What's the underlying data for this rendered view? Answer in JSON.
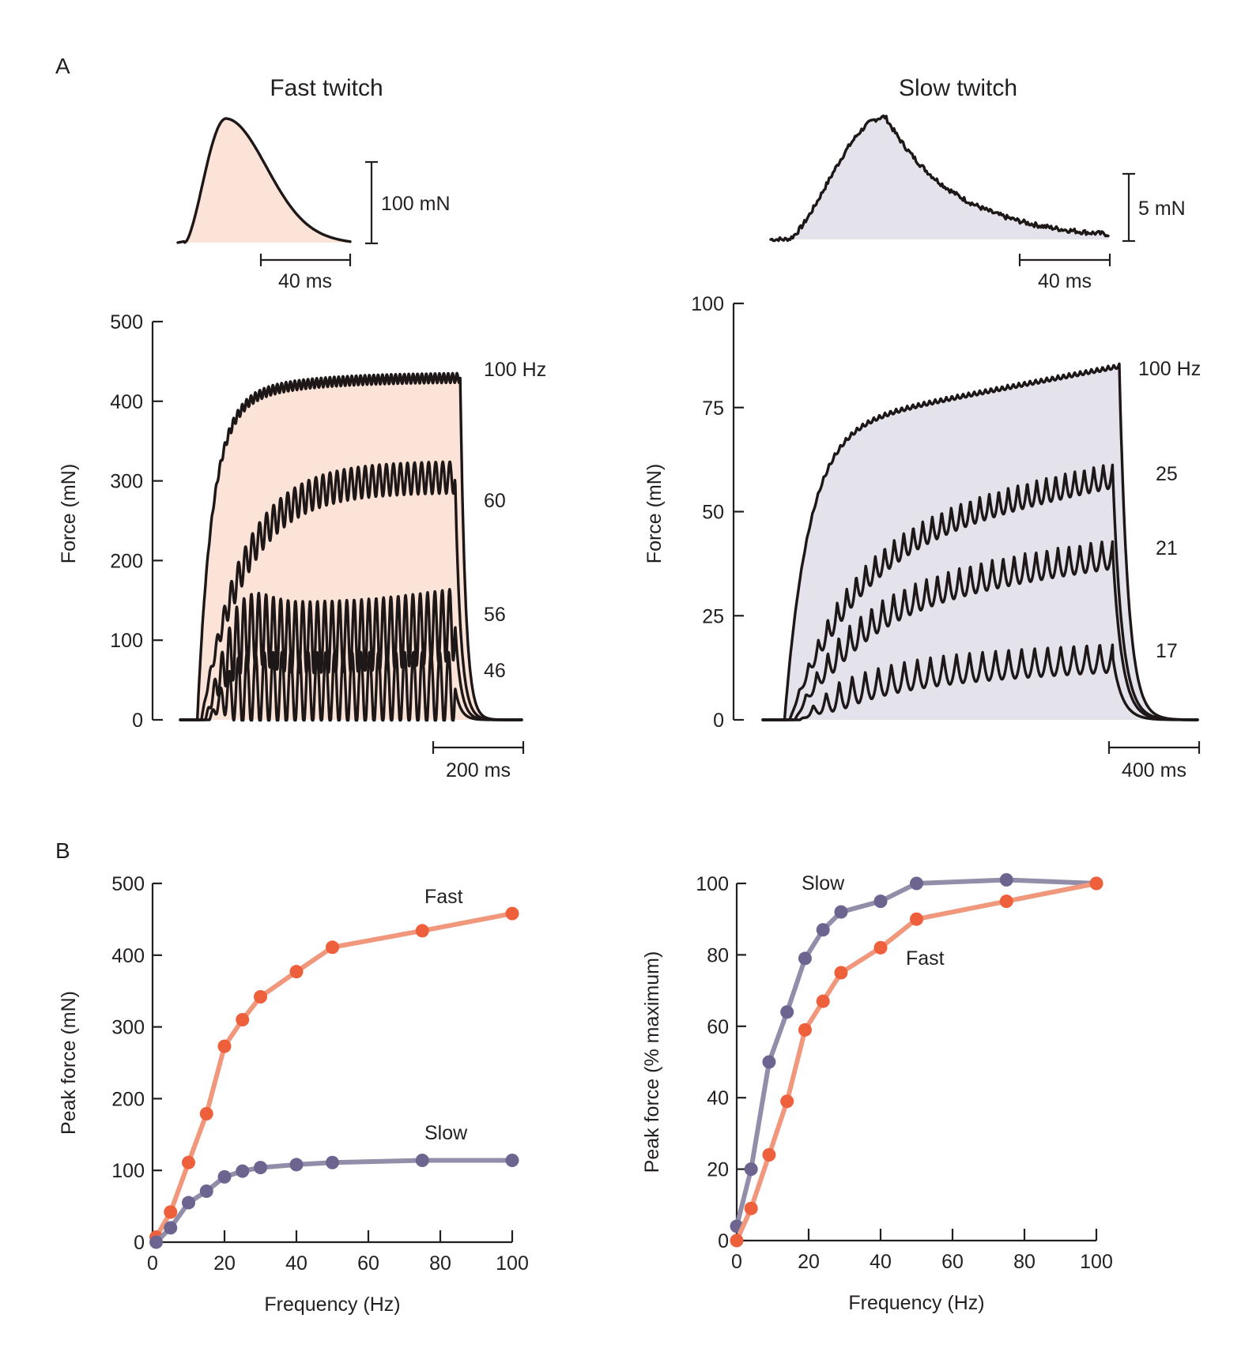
{
  "panels": {
    "A": {
      "letter": "A",
      "fast": {
        "title": "Fast twitch",
        "single_twitch": {
          "force_scale": "100 mN",
          "time_scale": "40 ms",
          "fill": "#fbe3d8"
        },
        "tetanus": {
          "ylabel": "Force (mN)",
          "yticks": [
            "0",
            "100",
            "200",
            "300",
            "400",
            "500"
          ],
          "ylim": [
            0,
            500
          ],
          "time_scale": "200 ms",
          "fill": "#fbe3d8",
          "traces": [
            {
              "label": "100 Hz",
              "plateau": 430,
              "ripple": 6,
              "cycles": 60
            },
            {
              "label": "60",
              "plateau": 305,
              "ripple": 20,
              "cycles": 36
            },
            {
              "label": "56",
              "plateau": 120,
              "ripple": 45,
              "cycles": 34
            },
            {
              "label": "46",
              "plateau": 40,
              "ripple": 45,
              "cycles": 28
            }
          ]
        }
      },
      "slow": {
        "title": "Slow twitch",
        "single_twitch": {
          "force_scale": "5 mN",
          "time_scale": "40 ms",
          "fill": "#e4e2ea"
        },
        "tetanus": {
          "ylabel": "Force (mN)",
          "yticks": [
            "0",
            "25",
            "50",
            "75",
            "100"
          ],
          "ylim": [
            0,
            100
          ],
          "time_scale": "400 ms",
          "fill": "#e4e2ea",
          "traces": [
            {
              "label": "100 Hz",
              "plateau": 85,
              "ripple": 0.5,
              "cycles": 60
            },
            {
              "label": "25",
              "plateau": 59,
              "ripple": 3,
              "cycles": 34
            },
            {
              "label": "21",
              "plateau": 40,
              "ripple": 3.5,
              "cycles": 29
            },
            {
              "label": "17",
              "plateau": 15,
              "ripple": 3.5,
              "cycles": 24
            }
          ]
        }
      }
    },
    "B": {
      "letter": "B"
    }
  },
  "chart_data": [
    {
      "type": "line",
      "title": "",
      "xlabel": "Frequency (Hz)",
      "ylabel": "Peak force (mN)",
      "xlim": [
        0,
        100
      ],
      "ylim": [
        0,
        500
      ],
      "xticks": [
        "0",
        "20",
        "40",
        "60",
        "80",
        "100"
      ],
      "yticks": [
        "0",
        "100",
        "200",
        "300",
        "400",
        "500"
      ],
      "grid": false,
      "series": [
        {
          "name": "Fast",
          "color": "#ee5f3c",
          "line_color": "#f0977c",
          "x": [
            1,
            5,
            10,
            15,
            20,
            25,
            30,
            40,
            50,
            75,
            100
          ],
          "y": [
            7,
            42,
            111,
            179,
            273,
            310,
            342,
            377,
            411,
            434,
            458
          ]
        },
        {
          "name": "Slow",
          "color": "#6d6590",
          "line_color": "#928da9",
          "x": [
            1,
            5,
            10,
            15,
            20,
            25,
            30,
            40,
            50,
            75,
            100
          ],
          "y": [
            0,
            20,
            55,
            71,
            91,
            99,
            104,
            108,
            111,
            114,
            114
          ]
        }
      ]
    },
    {
      "type": "line",
      "title": "",
      "xlabel": "Frequency (Hz)",
      "ylabel": "Peak force (% maximum)",
      "xlim": [
        0,
        100
      ],
      "ylim": [
        0,
        100
      ],
      "xticks": [
        "0",
        "20",
        "40",
        "60",
        "80",
        "100"
      ],
      "yticks": [
        "0",
        "20",
        "40",
        "60",
        "80",
        "100"
      ],
      "grid": false,
      "series": [
        {
          "name": "Slow",
          "color": "#6d6590",
          "line_color": "#928da9",
          "x": [
            0,
            4,
            9,
            14,
            19,
            24,
            29,
            40,
            50,
            75,
            100
          ],
          "y": [
            4,
            20,
            50,
            64,
            79,
            87,
            92,
            95,
            100,
            101,
            100
          ]
        },
        {
          "name": "Fast",
          "color": "#ee5f3c",
          "line_color": "#f0977c",
          "x": [
            0,
            4,
            9,
            14,
            19,
            24,
            29,
            40,
            50,
            75,
            100
          ],
          "y": [
            0,
            9,
            24,
            39,
            59,
            67,
            75,
            82,
            90,
            95,
            100
          ]
        }
      ]
    }
  ]
}
